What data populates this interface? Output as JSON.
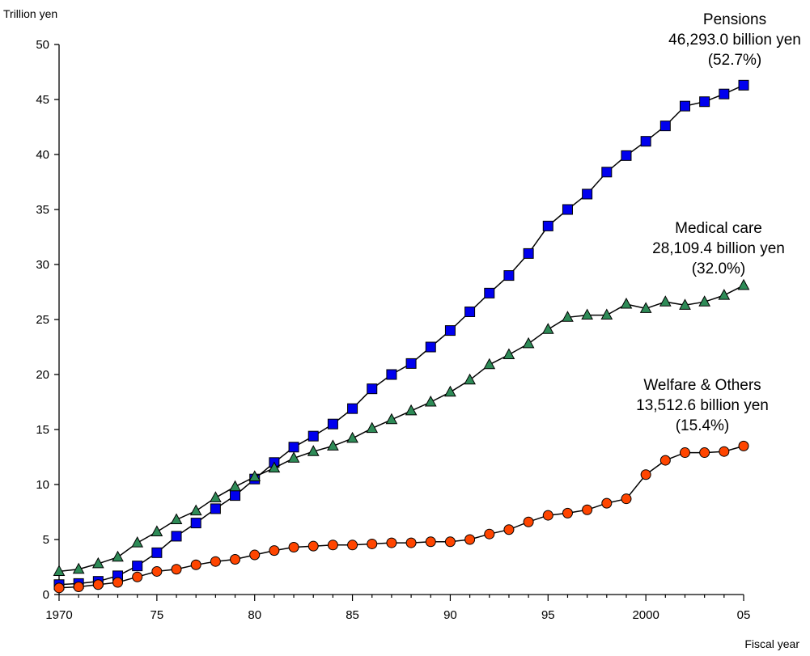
{
  "chart_data": {
    "type": "line",
    "ylabel": "Trillion yen",
    "xlabel": "Fiscal year",
    "ylim": [
      0,
      50
    ],
    "xlim": [
      1970,
      2005
    ],
    "yticks": [
      0,
      5,
      10,
      15,
      20,
      25,
      30,
      35,
      40,
      45,
      50
    ],
    "xticks": [
      {
        "value": 1970,
        "label": "1970"
      },
      {
        "value": 1975,
        "label": "75"
      },
      {
        "value": 1980,
        "label": "80"
      },
      {
        "value": 1985,
        "label": "85"
      },
      {
        "value": 1990,
        "label": "90"
      },
      {
        "value": 1995,
        "label": "95"
      },
      {
        "value": 2000,
        "label": "2000"
      },
      {
        "value": 2005,
        "label": "05"
      }
    ],
    "grid": false,
    "x": [
      1970,
      1971,
      1972,
      1973,
      1974,
      1975,
      1976,
      1977,
      1978,
      1979,
      1980,
      1981,
      1982,
      1983,
      1984,
      1985,
      1986,
      1987,
      1988,
      1989,
      1990,
      1991,
      1992,
      1993,
      1994,
      1995,
      1996,
      1997,
      1998,
      1999,
      2000,
      2001,
      2002,
      2003,
      2004,
      2005
    ],
    "series": [
      {
        "name": "Pensions",
        "marker": "square",
        "color": "#0000ee",
        "values": [
          0.9,
          1.0,
          1.2,
          1.7,
          2.6,
          3.8,
          5.3,
          6.5,
          7.8,
          9.0,
          10.5,
          12.0,
          13.4,
          14.4,
          15.5,
          16.9,
          18.7,
          20.0,
          21.0,
          22.5,
          24.0,
          25.7,
          27.4,
          29.0,
          31.0,
          33.5,
          35.0,
          36.4,
          38.4,
          39.9,
          41.2,
          42.6,
          44.4,
          44.8,
          45.5,
          46.3
        ],
        "annotation": [
          "Pensions",
          "46,293.0 billion yen",
          "(52.7%)"
        ]
      },
      {
        "name": "Medical care",
        "marker": "triangle",
        "color": "#2e8b57",
        "values": [
          2.1,
          2.3,
          2.8,
          3.4,
          4.7,
          5.7,
          6.8,
          7.6,
          8.8,
          9.8,
          10.7,
          11.5,
          12.4,
          13.0,
          13.5,
          14.2,
          15.1,
          15.9,
          16.7,
          17.5,
          18.4,
          19.5,
          20.9,
          21.8,
          22.8,
          24.1,
          25.2,
          25.4,
          25.4,
          26.4,
          26.0,
          26.6,
          26.3,
          26.6,
          27.2,
          28.1
        ],
        "annotation": [
          "Medical care",
          "28,109.4 billion yen",
          "(32.0%)"
        ]
      },
      {
        "name": "Welfare & Others",
        "marker": "circle",
        "color": "#ff4500",
        "values": [
          0.6,
          0.7,
          0.9,
          1.1,
          1.6,
          2.1,
          2.3,
          2.7,
          3.0,
          3.2,
          3.6,
          4.0,
          4.3,
          4.4,
          4.5,
          4.5,
          4.6,
          4.7,
          4.7,
          4.8,
          4.8,
          5.0,
          5.5,
          5.9,
          6.6,
          7.2,
          7.4,
          7.7,
          8.3,
          8.7,
          10.9,
          12.2,
          12.9,
          12.9,
          13.0,
          13.5
        ],
        "annotation": [
          "Welfare & Others",
          "13,512.6 billion yen",
          "(15.4%)"
        ]
      }
    ]
  }
}
